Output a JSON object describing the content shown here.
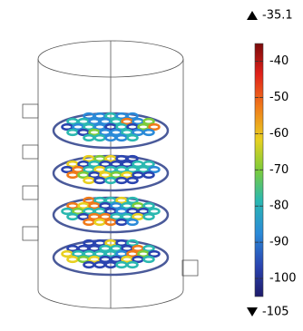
{
  "colorbar": {
    "max": -35.1,
    "min": -105,
    "ticks": [
      -40,
      -50,
      -60,
      -70,
      -80,
      -90,
      -100
    ]
  }
}
